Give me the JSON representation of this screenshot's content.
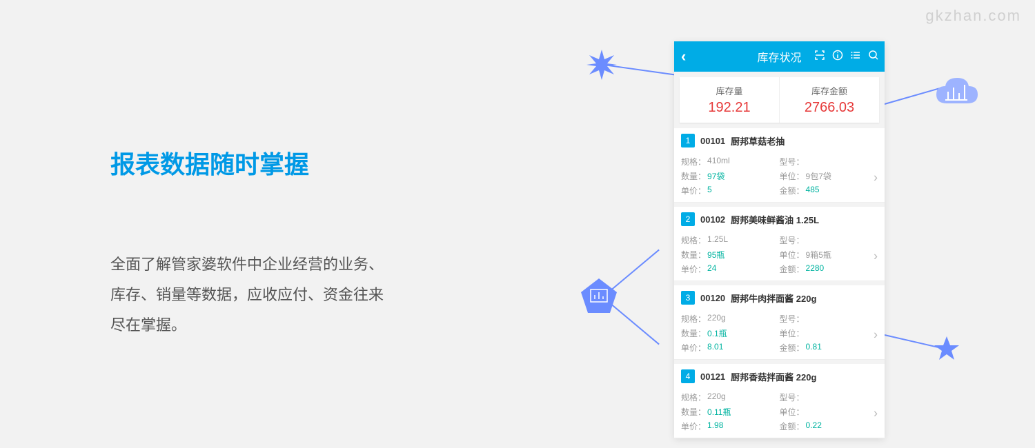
{
  "watermark": "gkzhan.com",
  "headline": "报表数据随时掌握",
  "desc_line1": "全面了解管家婆软件中企业经营的业务、",
  "desc_line2": "库存、销量等数据，应收应付、资金往来",
  "desc_line3": "尽在掌握。",
  "phone": {
    "title": "库存状况",
    "summary": {
      "qty_label": "库存量",
      "qty_value": "192.21",
      "amt_label": "库存金额",
      "amt_value": "2766.03"
    },
    "labels": {
      "spec": "规格：",
      "model": "型号：",
      "qty": "数量：",
      "unit": "单位：",
      "price": "单价：",
      "amount": "金额："
    },
    "items": [
      {
        "num": "1",
        "code": "00101",
        "name": "厨邦草菇老抽",
        "spec": "410ml",
        "model": "",
        "qty": "97袋",
        "unit": "9包7袋",
        "price": "5",
        "amount": "485"
      },
      {
        "num": "2",
        "code": "00102",
        "name": "厨邦美味鲜酱油 1.25L",
        "spec": "1.25L",
        "model": "",
        "qty": "95瓶",
        "unit": "9箱5瓶",
        "price": "24",
        "amount": "2280"
      },
      {
        "num": "3",
        "code": "00120",
        "name": "厨邦牛肉拌面酱 220g",
        "spec": "220g",
        "model": "",
        "qty": "0.1瓶",
        "unit": "",
        "price": "8.01",
        "amount": "0.81"
      },
      {
        "num": "4",
        "code": "00121",
        "name": "厨邦香菇拌面酱 220g",
        "spec": "220g",
        "model": "",
        "qty": "0.11瓶",
        "unit": "",
        "price": "1.98",
        "amount": "0.22"
      }
    ]
  },
  "colors": {
    "accent": "#00ace6",
    "headline": "#0099e6",
    "value_red": "#e63939",
    "teal": "#00b3a0",
    "deco_blue": "#6b8cff",
    "deco_light": "#9db3ff"
  }
}
